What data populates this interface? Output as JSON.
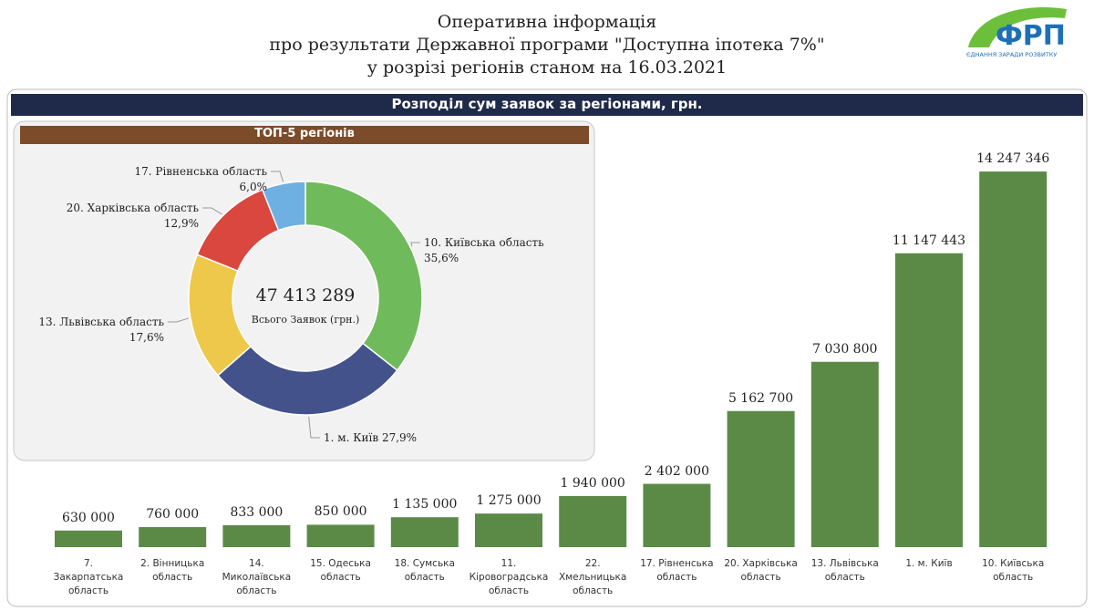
{
  "header": {
    "lines": [
      "Оперативна інформація",
      "про результати Державної програми \"Доступна іпотека 7%\"",
      "у розрізі регіонів станом на  16.03.2021"
    ]
  },
  "logo": {
    "text": "ФРП",
    "tagline": "ЄДНАННЯ ЗАРАДИ РОЗВИТКУ"
  },
  "chart_data": [
    {
      "type": "bar",
      "title": "Розподіл сум заявок за регіонами, грн.",
      "categories": [
        "7. Закарпатська область",
        "2. Вінницька область",
        "14. Миколаївська область",
        "15. Одеська область",
        "18. Сумська область",
        "11. Кіровоградська область",
        "22. Хмельницька область",
        "17. Рівненська область",
        "20. Харківська область",
        "13. Львівська область",
        "1. м. Київ",
        "10. Київська область"
      ],
      "values": [
        630000,
        760000,
        833000,
        850000,
        1135000,
        1275000,
        1940000,
        2402000,
        5162700,
        7030800,
        11147443,
        14247346
      ],
      "value_labels": [
        "630 000",
        "760 000",
        "833 000",
        "850 000",
        "1 135 000",
        "1 275 000",
        "1 940 000",
        "2 402 000",
        "5 162 700",
        "7 030 800",
        "11 147 443",
        "14 247 346"
      ],
      "color": "#5b8a47",
      "ylim": [
        0,
        14700000
      ]
    },
    {
      "type": "pie",
      "title": "ТОП-5 регіонів",
      "categories": [
        "10. Київська область",
        "1. м. Київ",
        "13. Львівська область",
        "20. Харківська область",
        "17. Рівненська область"
      ],
      "values": [
        35.6,
        27.9,
        17.6,
        12.9,
        6.0
      ],
      "value_labels": [
        "35,6%",
        "27,9%",
        "17,6%",
        "12,9%",
        "6,0%"
      ],
      "colors": [
        "#6fbb5c",
        "#43528a",
        "#eec84a",
        "#d9473f",
        "#6fb0e2"
      ],
      "center_text": "47 413 289",
      "center_label": "Всього Заявок (грн.)"
    }
  ]
}
